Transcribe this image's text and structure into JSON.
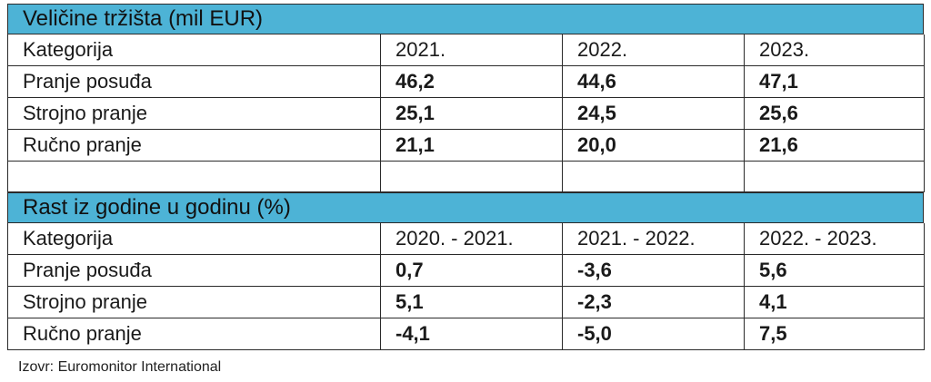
{
  "market_size": {
    "title": "Veličine tržišta (mil EUR)",
    "header": [
      "Kategorija",
      "2021.",
      "2022.",
      "2023."
    ],
    "rows": [
      [
        "Pranje posuđa",
        "46,2",
        "44,6",
        "47,1"
      ],
      [
        "Strojno pranje",
        "25,1",
        "24,5",
        "25,6"
      ],
      [
        "Ručno pranje",
        "21,1",
        "20,0",
        "21,6"
      ]
    ]
  },
  "growth": {
    "title": "Rast iz godine u godinu (%)",
    "header": [
      "Kategorija",
      "2020. - 2021.",
      "2021. - 2022.",
      "2022. - 2023."
    ],
    "rows": [
      [
        "Pranje posuđa",
        "0,7",
        "-3,6",
        "5,6"
      ],
      [
        "Strojno pranje",
        "5,1",
        "-2,3",
        "4,1"
      ],
      [
        "Ručno pranje",
        "-4,1",
        "-5,0",
        "7,5"
      ]
    ]
  },
  "source": "Izovr: Euromonitor International"
}
